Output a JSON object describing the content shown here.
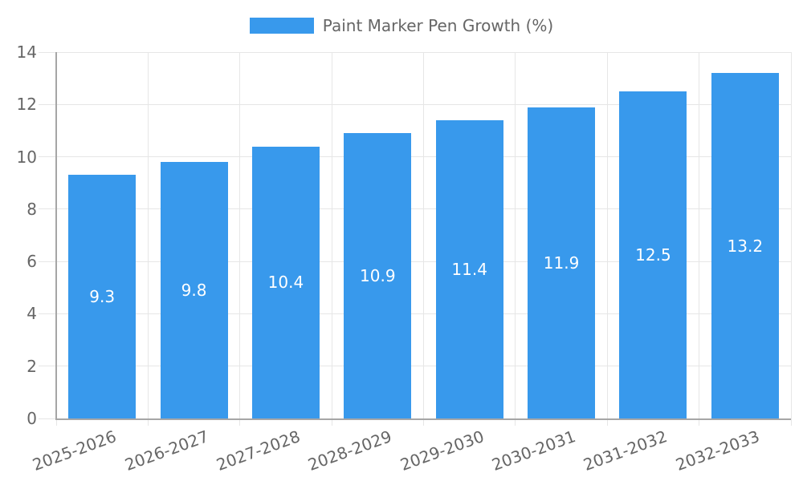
{
  "legend": {
    "label": "Paint Marker Pen Growth (%)"
  },
  "chart_data": {
    "type": "bar",
    "title": "Paint Marker Pen Growth (%)",
    "categories": [
      "2025-2026",
      "2026-2027",
      "2027-2028",
      "2028-2029",
      "2029-2030",
      "2030-2031",
      "2031-2032",
      "2032-2033"
    ],
    "values": [
      9.3,
      9.8,
      10.4,
      10.9,
      11.4,
      11.9,
      12.5,
      13.2
    ],
    "value_labels": [
      "9.3",
      "9.8",
      "10.4",
      "10.9",
      "11.4",
      "11.9",
      "12.5",
      "13.2"
    ],
    "xlabel": "",
    "ylabel": "",
    "ylim": [
      0,
      14
    ],
    "yticks": [
      0,
      2,
      4,
      6,
      8,
      10,
      12,
      14
    ],
    "grid": true,
    "legend_position": "top",
    "colors": {
      "bar": "#3899ec",
      "value_label": "#ffffff",
      "axis_text": "#666666",
      "gridline": "#e6e6e6",
      "axis_line": "#a6a6a6",
      "background": "#ffffff"
    }
  }
}
